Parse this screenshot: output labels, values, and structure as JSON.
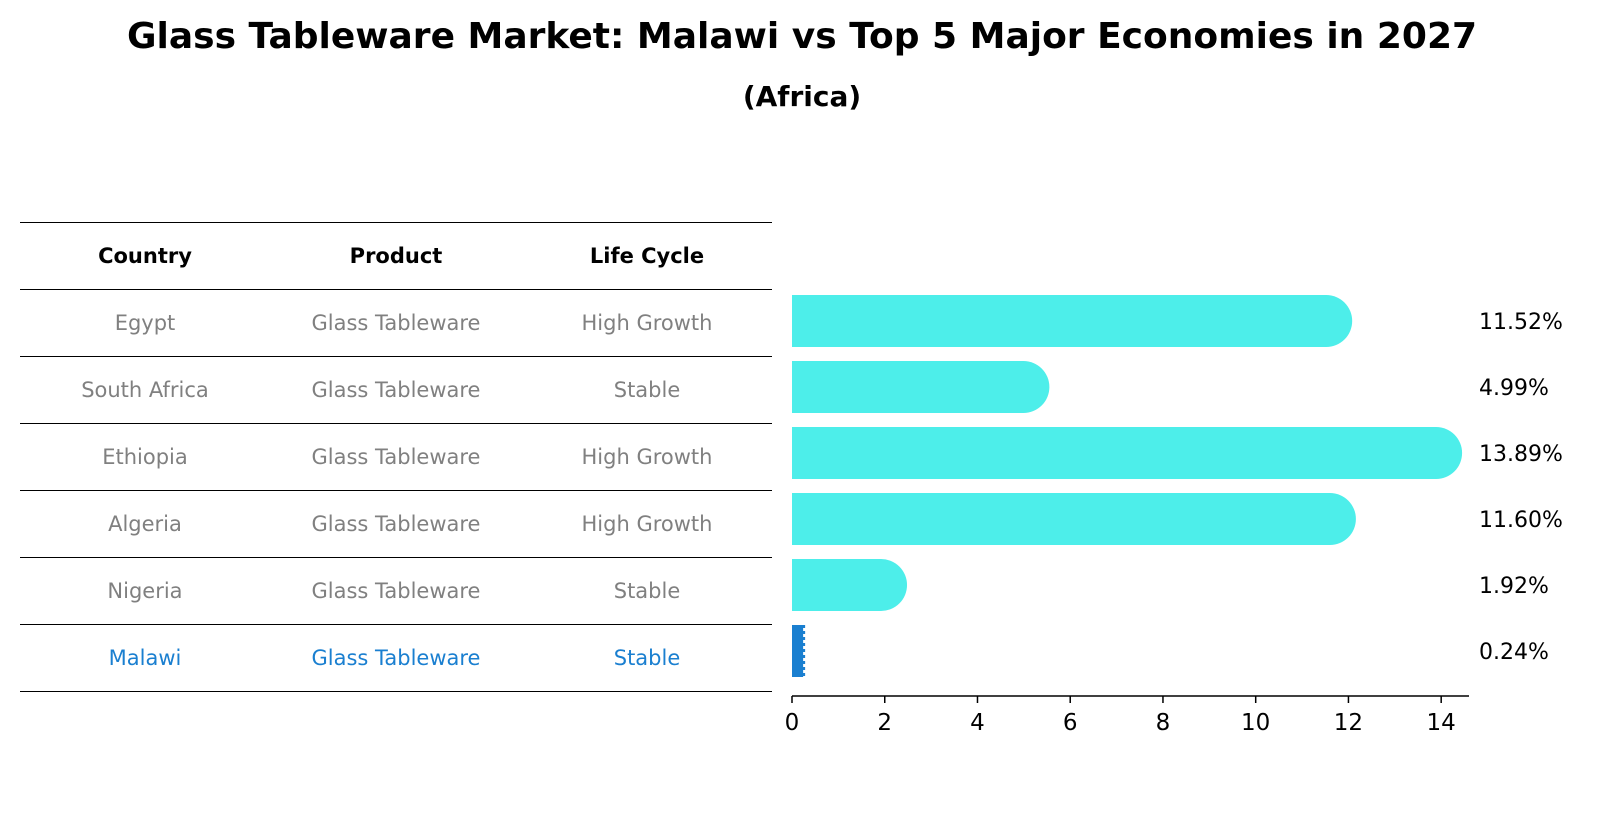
{
  "chart_data": {
    "type": "bar",
    "orientation": "horizontal",
    "title": "Glass Tableware Market: Malawi vs Top 5 Major Economies in 2027",
    "subtitle": "(Africa)",
    "table": {
      "headers": [
        "Country",
        "Product",
        "Life Cycle"
      ],
      "rows": [
        [
          "Egypt",
          "Glass Tableware",
          "High Growth"
        ],
        [
          "South Africa",
          "Glass Tableware",
          "Stable"
        ],
        [
          "Ethiopia",
          "Glass Tableware",
          "High Growth"
        ],
        [
          "Algeria",
          "Glass Tableware",
          "High Growth"
        ],
        [
          "Nigeria",
          "Glass Tableware",
          "Stable"
        ],
        [
          "Malawi",
          "Glass Tableware",
          "Stable"
        ]
      ],
      "highlight_row": 5
    },
    "categories": [
      "Egypt",
      "South Africa",
      "Ethiopia",
      "Algeria",
      "Nigeria",
      "Malawi"
    ],
    "values": [
      11.52,
      4.99,
      13.89,
      11.6,
      1.92,
      0.24
    ],
    "value_labels": [
      "11.52%",
      "4.99%",
      "13.89%",
      "11.60%",
      "1.92%",
      "0.24%"
    ],
    "xlim": [
      0,
      14.6
    ],
    "xticks": [
      0,
      2,
      4,
      6,
      8,
      10,
      12,
      14
    ],
    "xlabel": "",
    "ylabel": "",
    "grid": false,
    "colors": {
      "bar": "#4deeea",
      "highlight": "#1a7fd0",
      "table_text": "#808080",
      "table_highlight": "#1a7fd0"
    }
  }
}
